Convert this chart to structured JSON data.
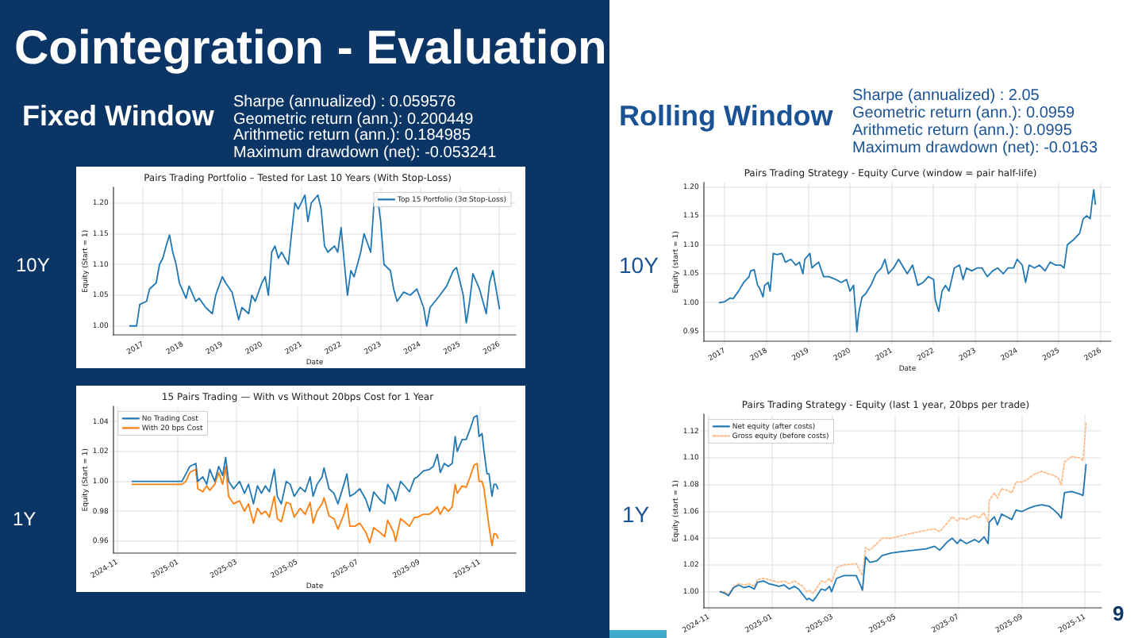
{
  "chart_data": [
    {
      "type": "other",
      "title": "Cointegration - Evaluation",
      "annotations": [
        "Fixed Window",
        "Sharpe (annualized) : 0.059576",
        "Geometric return (ann.): 0.200449",
        "Arithmetic return (ann.): 0.184985",
        "Maximum drawdown (net): -0.053241",
        "Rolling Window",
        "Sharpe (annualized) : 2.05",
        "Geometric return (ann.): 0.0959",
        "Arithmetic return (ann.): 0.0995",
        "Maximum drawdown (net): -0.0163",
        "10Y",
        "1Y",
        "10Y",
        "1Y",
        "9"
      ]
    },
    {
      "type": "line",
      "title": "Pairs Trading Portfolio – Tested for Last 10 Years (With Stop-Loss)",
      "xlabel": "Date",
      "ylabel": "Equity (Start = 1)",
      "grid": true,
      "legend": "top right",
      "xlim": [
        "2016-04",
        "2026-06"
      ],
      "xticks": [
        {
          "value": "2017",
          "label": "2017"
        },
        {
          "value": "2018",
          "label": "2018"
        },
        {
          "value": "2019",
          "label": "2019"
        },
        {
          "value": "2020",
          "label": "2020"
        },
        {
          "value": "2021",
          "label": "2021"
        },
        {
          "value": "2022",
          "label": "2022"
        },
        {
          "value": "2023",
          "label": "2023"
        },
        {
          "value": "2024",
          "label": "2024"
        },
        {
          "value": "2025",
          "label": "2025"
        },
        {
          "value": "2026",
          "label": "2026"
        }
      ],
      "ylim": [
        0.985,
        1.225
      ],
      "yticks": [
        {
          "value": 1,
          "label": "1.00"
        },
        1.05,
        {
          "value": 1.1,
          "label": "1.10"
        },
        1.15,
        {
          "value": 1.2,
          "label": "1.20"
        }
      ],
      "x": [
        "2016-09",
        "2016-11",
        "2016-12",
        "2017-02",
        "2017-03",
        "2017-05",
        "2017-06",
        "2017-07",
        "2017-08",
        "2017-09",
        "2017-10",
        "2017-11",
        "2017-12",
        "2018-02",
        "2018-03",
        "2018-05",
        "2018-06",
        "2018-08",
        "2018-10",
        "2018-11",
        "2019-01",
        "2019-02",
        "2019-04",
        "2019-06",
        "2019-07",
        "2019-09",
        "2019-10",
        "2019-11",
        "2020-01",
        "2020-02",
        "2020-03",
        "2020-04",
        "2020-05",
        "2020-06",
        "2020-07",
        "2020-09",
        "2020-10",
        "2020-11",
        "2020-12",
        "2021-02",
        "2021-03",
        "2021-04",
        "2021-06",
        "2021-07",
        "2021-08",
        "2021-09",
        "2021-11",
        "2021-12",
        "2022-01",
        "2022-02",
        "2022-03",
        "2022-04",
        "2022-05",
        "2022-07",
        "2022-08",
        "2022-10",
        "2022-11",
        "2022-12",
        "2023-01",
        "2023-02",
        "2023-04",
        "2023-05",
        "2023-06",
        "2023-08",
        "2023-10",
        "2023-12",
        "2024-02",
        "2024-03",
        "2024-04",
        "2024-07",
        "2024-09",
        "2024-11",
        "2024-12",
        "2025-02",
        "2025-03",
        "2025-04",
        "2025-05",
        "2025-07",
        "2025-09",
        "2025-10",
        "2025-11",
        "2025-12",
        "2026-01"
      ],
      "series": [
        {
          "name": "Top 15 Portfolio (3σ Stop-Loss)",
          "color": "#1f77b4",
          "values": [
            1.0,
            1.0,
            1.035,
            1.04,
            1.06,
            1.07,
            1.1,
            1.11,
            1.13,
            1.148,
            1.12,
            1.1,
            1.07,
            1.045,
            1.065,
            1.04,
            1.045,
            1.03,
            1.02,
            1.05,
            1.08,
            1.07,
            1.055,
            1.01,
            1.03,
            1.02,
            1.05,
            1.04,
            1.07,
            1.08,
            1.05,
            1.12,
            1.13,
            1.11,
            1.12,
            1.1,
            1.15,
            1.2,
            1.19,
            1.213,
            1.17,
            1.2,
            1.213,
            1.19,
            1.13,
            1.12,
            1.13,
            1.12,
            1.16,
            1.1,
            1.05,
            1.09,
            1.08,
            1.12,
            1.15,
            1.12,
            1.2,
            1.213,
            1.17,
            1.1,
            1.09,
            1.06,
            1.04,
            1.055,
            1.05,
            1.06,
            1.03,
            1.0,
            1.03,
            1.05,
            1.065,
            1.09,
            1.095,
            1.05,
            1.005,
            1.04,
            1.085,
            1.06,
            1.02,
            1.07,
            1.09,
            1.06,
            1.028
          ]
        }
      ]
    },
    {
      "type": "line",
      "title": "15 Pairs Trading — With vs Without 20bps Cost for 1 Year",
      "xlabel": "Date",
      "ylabel": "Equity (Start = 1)",
      "grid": true,
      "legend": "top left",
      "xlim": [
        "2024-10-28",
        "2025-12-07"
      ],
      "xticks": [
        {
          "value": "2024-11",
          "label": "2024-11"
        },
        {
          "value": "2025-01",
          "label": "2025-01"
        },
        {
          "value": "2025-03",
          "label": "2025-03"
        },
        {
          "value": "2025-05",
          "label": "2025-05"
        },
        {
          "value": "2025-07",
          "label": "2025-07"
        },
        {
          "value": "2025-09",
          "label": "2025-09"
        },
        {
          "value": "2025-11",
          "label": "2025-11"
        }
      ],
      "ylim": [
        0.952,
        1.05
      ],
      "yticks": [
        0.96,
        0.98,
        {
          "value": 1,
          "label": "1.00"
        },
        1.02,
        1.04
      ],
      "x": [
        "2024-11-16",
        "2025-01-05",
        "2025-01-09",
        "2025-01-13",
        "2025-01-19",
        "2025-01-21",
        "2025-01-26",
        "2025-01-30",
        "2025-02-02",
        "2025-02-07",
        "2025-02-11",
        "2025-02-15",
        "2025-02-18",
        "2025-02-21",
        "2025-02-26",
        "2025-03-04",
        "2025-03-09",
        "2025-03-13",
        "2025-03-18",
        "2025-03-22",
        "2025-03-26",
        "2025-03-30",
        "2025-04-03",
        "2025-04-08",
        "2025-04-11",
        "2025-04-15",
        "2025-04-20",
        "2025-04-24",
        "2025-04-28",
        "2025-05-04",
        "2025-05-09",
        "2025-05-14",
        "2025-05-17",
        "2025-05-21",
        "2025-05-26",
        "2025-05-28",
        "2025-06-02",
        "2025-06-07",
        "2025-06-11",
        "2025-06-17",
        "2025-06-20",
        "2025-06-23",
        "2025-06-28",
        "2025-07-03",
        "2025-07-09",
        "2025-07-13",
        "2025-07-17",
        "2025-07-23",
        "2025-07-28",
        "2025-07-31",
        "2025-08-06",
        "2025-08-08",
        "2025-08-13",
        "2025-08-17",
        "2025-08-22",
        "2025-08-27",
        "2025-08-30",
        "2025-09-05",
        "2025-09-11",
        "2025-09-15",
        "2025-09-19",
        "2025-09-22",
        "2025-09-26",
        "2025-09-30",
        "2025-10-04",
        "2025-10-07",
        "2025-10-09",
        "2025-10-14",
        "2025-10-18",
        "2025-10-22",
        "2025-10-26",
        "2025-10-29",
        "2025-10-31",
        "2025-11-03",
        "2025-11-05",
        "2025-11-08",
        "2025-11-10",
        "2025-11-13",
        "2025-11-15",
        "2025-11-17",
        "2025-11-19"
      ],
      "series": [
        {
          "name": "No Trading Cost",
          "color": "#1f77b4",
          "values": [
            1.0,
            1.0,
            1.005,
            1.01,
            1.012,
            1.0,
            1.003,
            0.998,
            1.008,
            1.0,
            1.01,
            1.004,
            1.016,
            1.0,
            0.995,
            1.0,
            0.992,
            0.998,
            0.985,
            0.997,
            0.992,
            0.997,
            0.993,
            1.008,
            0.99,
            0.985,
            1.0,
            0.998,
            0.99,
            0.996,
            0.993,
            1.003,
            0.99,
            0.998,
            1.003,
            1.009,
            0.995,
            0.992,
            0.985,
            0.998,
            1.005,
            0.99,
            0.992,
            0.995,
            0.988,
            0.98,
            0.993,
            0.988,
            0.985,
            0.998,
            0.992,
            0.987,
            1.0,
            0.997,
            0.993,
            1.002,
            1.003,
            1.007,
            1.008,
            1.01,
            1.018,
            1.006,
            1.012,
            1.01,
            1.012,
            1.03,
            1.02,
            1.028,
            1.028,
            1.035,
            1.043,
            1.044,
            1.03,
            1.032,
            1.02,
            1.005,
            1.005,
            0.99,
            0.998,
            0.998,
            0.995
          ]
        },
        {
          "name": "With 20 bps Cost",
          "color": "#ff7f0e",
          "values": [
            0.998,
            0.998,
            1.0,
            1.006,
            1.008,
            0.995,
            0.993,
            0.997,
            0.994,
            0.998,
            1.006,
            0.998,
            1.01,
            0.99,
            0.985,
            0.987,
            0.98,
            0.985,
            0.972,
            0.982,
            0.978,
            0.98,
            0.976,
            0.99,
            0.975,
            0.973,
            0.986,
            0.985,
            0.976,
            0.982,
            0.978,
            0.986,
            0.972,
            0.98,
            0.985,
            0.989,
            0.977,
            0.975,
            0.968,
            0.978,
            0.985,
            0.97,
            0.97,
            0.972,
            0.966,
            0.959,
            0.969,
            0.966,
            0.963,
            0.974,
            0.966,
            0.96,
            0.975,
            0.973,
            0.97,
            0.976,
            0.976,
            0.978,
            0.978,
            0.98,
            0.983,
            0.978,
            0.983,
            0.98,
            0.983,
            0.998,
            0.992,
            0.997,
            0.996,
            1.003,
            1.011,
            1.012,
            1.0,
            1.0,
            0.995,
            0.98,
            0.97,
            0.957,
            0.965,
            0.965,
            0.962
          ]
        }
      ]
    },
    {
      "type": "line",
      "title": "Pairs Trading Strategy - Equity Curve (window = pair half-life)",
      "xlabel": "Date",
      "ylabel": "Equity (start = 1)",
      "grid": true,
      "xlim": [
        "2016-07",
        "2026-04"
      ],
      "xticks": [
        {
          "value": "2017",
          "label": "2017"
        },
        {
          "value": "2018",
          "label": "2018"
        },
        {
          "value": "2019",
          "label": "2019"
        },
        {
          "value": "2020",
          "label": "2020"
        },
        {
          "value": "2021",
          "label": "2021"
        },
        {
          "value": "2022",
          "label": "2022"
        },
        {
          "value": "2023",
          "label": "2023"
        },
        {
          "value": "2024",
          "label": "2024"
        },
        {
          "value": "2025",
          "label": "2025"
        },
        {
          "value": "2026",
          "label": "2026"
        }
      ],
      "ylim": [
        0.933,
        1.207
      ],
      "yticks": [
        0.95,
        {
          "value": 1,
          "label": "1.00"
        },
        1.05,
        {
          "value": 1.1,
          "label": "1.10"
        },
        1.15,
        {
          "value": 1.2,
          "label": "1.20"
        }
      ],
      "x": [
        "2016-11-15",
        "2017-01-01",
        "2017-02-15",
        "2017-03-15",
        "2017-05-01",
        "2017-06-15",
        "2017-08-01",
        "2017-08-15",
        "2017-09-15",
        "2017-10-15",
        "2017-11-01",
        "2017-12-01",
        "2017-12-15",
        "2018-01-15",
        "2018-02-01",
        "2018-03-01",
        "2018-04-01",
        "2018-05-15",
        "2018-06-15",
        "2018-08-01",
        "2018-09-15",
        "2018-10-15",
        "2018-11-15",
        "2018-12-01",
        "2019-01-15",
        "2019-02-01",
        "2019-03-01",
        "2019-04-01",
        "2019-05-15",
        "2019-07-01",
        "2019-09-01",
        "2019-10-15",
        "2019-12-01",
        "2020-01-01",
        "2020-02-01",
        "2020-03-01",
        "2020-03-15",
        "2020-04-15",
        "2020-05-15",
        "2020-07-01",
        "2020-08-15",
        "2020-10-01",
        "2020-11-01",
        "2020-12-01",
        "2021-01-15",
        "2021-03-01",
        "2021-04-15",
        "2021-05-15",
        "2021-07-01",
        "2021-08-15",
        "2021-10-01",
        "2021-11-15",
        "2022-01-01",
        "2022-01-15",
        "2022-02-15",
        "2022-03-15",
        "2022-04-15",
        "2022-05-15",
        "2022-07-01",
        "2022-08-15",
        "2022-09-15",
        "2022-10-15",
        "2022-12-01",
        "2023-01-15",
        "2023-03-01",
        "2023-04-15",
        "2023-06-01",
        "2023-07-15",
        "2023-09-01",
        "2023-10-15",
        "2023-12-01",
        "2024-01-01",
        "2024-02-15",
        "2024-03-15",
        "2024-04-15",
        "2024-06-01",
        "2024-07-15",
        "2024-09-01",
        "2024-10-15",
        "2024-12-01",
        "2025-01-15",
        "2025-02-15",
        "2025-03-15",
        "2025-05-15",
        "2025-07-01",
        "2025-08-01",
        "2025-09-01",
        "2025-10-01",
        "2025-10-15",
        "2025-11-01",
        "2025-11-15"
      ],
      "series": [
        {
          "color": "#1f77b4",
          "values": [
            1.0,
            1.002,
            1.008,
            1.007,
            1.02,
            1.035,
            1.045,
            1.055,
            1.057,
            1.03,
            1.025,
            1.01,
            1.03,
            1.035,
            1.02,
            1.085,
            1.083,
            1.085,
            1.07,
            1.075,
            1.065,
            1.07,
            1.05,
            1.075,
            1.085,
            1.06,
            1.065,
            1.07,
            1.045,
            1.045,
            1.04,
            1.035,
            1.04,
            1.02,
            1.03,
            0.95,
            0.98,
            1.01,
            1.015,
            1.03,
            1.05,
            1.06,
            1.075,
            1.05,
            1.06,
            1.075,
            1.06,
            1.05,
            1.065,
            1.03,
            1.035,
            1.045,
            1.04,
            1.005,
            0.985,
            1.02,
            1.03,
            1.02,
            1.06,
            1.065,
            1.04,
            1.06,
            1.055,
            1.06,
            1.06,
            1.045,
            1.055,
            1.06,
            1.05,
            1.06,
            1.06,
            1.075,
            1.065,
            1.035,
            1.065,
            1.06,
            1.065,
            1.055,
            1.07,
            1.065,
            1.065,
            1.06,
            1.1,
            1.11,
            1.12,
            1.145,
            1.15,
            1.145,
            1.17,
            1.195,
            1.17
          ]
        }
      ]
    },
    {
      "type": "line",
      "title": "Pairs Trading Strategy - Equity (last 1 year, 20bps per trade)",
      "ylabel": "Equity (start = 1)",
      "grid": true,
      "legend": "top left",
      "xlim": [
        "2024-10-27",
        "2025-11-17"
      ],
      "xticks": [
        {
          "value": "2024-11",
          "label": "2024-11"
        },
        {
          "value": "2025-01",
          "label": "2025-01"
        },
        {
          "value": "2025-03",
          "label": "2025-03"
        },
        {
          "value": "2025-05",
          "label": "2025-05"
        },
        {
          "value": "2025-07",
          "label": "2025-07"
        },
        {
          "value": "2025-09",
          "label": "2025-09"
        },
        {
          "value": "2025-11",
          "label": "2025-11"
        }
      ],
      "ylim": [
        0.988,
        1.1325
      ],
      "yticks": [
        {
          "value": 1,
          "label": "1.00"
        },
        1.02,
        1.04,
        1.06,
        1.08,
        {
          "value": 1.1,
          "label": "1.10"
        },
        1.12
      ],
      "x": [
        "2024-11-12",
        "2024-11-16",
        "2024-11-20",
        "2024-11-25",
        "2024-11-30",
        "2024-12-05",
        "2024-12-10",
        "2024-12-15",
        "2024-12-18",
        "2024-12-24",
        "2024-12-29",
        "2025-01-03",
        "2025-01-08",
        "2025-01-13",
        "2025-01-18",
        "2025-01-23",
        "2025-01-27",
        "2025-01-31",
        "2025-02-04",
        "2025-02-06",
        "2025-02-10",
        "2025-02-13",
        "2025-02-18",
        "2025-02-22",
        "2025-02-26",
        "2025-02-28",
        "2025-03-05",
        "2025-03-12",
        "2025-03-24",
        "2025-03-28",
        "2025-03-30",
        "2025-04-02",
        "2025-04-06",
        "2025-04-13",
        "2025-04-18",
        "2025-04-27",
        "2025-05-07",
        "2025-05-19",
        "2025-05-31",
        "2025-06-08",
        "2025-06-13",
        "2025-06-20",
        "2025-06-25",
        "2025-06-30",
        "2025-07-03",
        "2025-07-09",
        "2025-07-17",
        "2025-07-21",
        "2025-07-26",
        "2025-07-30",
        "2025-07-31",
        "2025-08-05",
        "2025-08-08",
        "2025-08-12",
        "2025-08-17",
        "2025-08-22",
        "2025-08-26",
        "2025-09-01",
        "2025-09-06",
        "2025-09-13",
        "2025-09-20",
        "2025-09-27",
        "2025-10-02",
        "2025-10-06",
        "2025-10-09",
        "2025-10-12",
        "2025-10-19",
        "2025-10-27",
        "2025-10-30",
        "2025-11-02"
      ],
      "series": [
        {
          "name": "Net equity (after costs)",
          "color": "#1f77b4",
          "line_style": "solid",
          "values": [
            1.0,
            0.999,
            0.997,
            1.003,
            1.005,
            1.003,
            1.004,
            1.002,
            1.007,
            1.008,
            1.006,
            1.005,
            1.004,
            1.005,
            1.002,
            1.004,
            1.002,
            0.998,
            0.994,
            0.995,
            0.993,
            0.996,
            1.002,
            1.001,
            1.004,
            1.0,
            1.01,
            1.012,
            1.012,
            1.005,
            1.001,
            1.026,
            1.022,
            1.023,
            1.027,
            1.029,
            1.03,
            1.031,
            1.032,
            1.034,
            1.031,
            1.037,
            1.04,
            1.036,
            1.039,
            1.036,
            1.039,
            1.037,
            1.041,
            1.036,
            1.052,
            1.056,
            1.05,
            1.058,
            1.056,
            1.054,
            1.061,
            1.06,
            1.062,
            1.064,
            1.065,
            1.064,
            1.061,
            1.058,
            1.055,
            1.074,
            1.075,
            1.073,
            1.072,
            1.095
          ]
        },
        {
          "name": "Gross equity (before costs)",
          "color": "#ffbb88",
          "line_style": "dotted",
          "values": [
            1.0,
            1.0,
            0.998,
            1.004,
            1.006,
            1.005,
            1.006,
            1.004,
            1.009,
            1.01,
            1.009,
            1.008,
            1.007,
            1.008,
            1.006,
            1.008,
            1.006,
            1.004,
            1.0,
            1.001,
            0.999,
            1.002,
            1.008,
            1.007,
            1.01,
            1.007,
            1.018,
            1.02,
            1.021,
            1.015,
            1.012,
            1.033,
            1.031,
            1.036,
            1.04,
            1.04,
            1.042,
            1.044,
            1.046,
            1.047,
            1.045,
            1.051,
            1.056,
            1.053,
            1.055,
            1.054,
            1.057,
            1.055,
            1.059,
            1.052,
            1.068,
            1.074,
            1.07,
            1.077,
            1.076,
            1.074,
            1.082,
            1.082,
            1.084,
            1.088,
            1.09,
            1.088,
            1.087,
            1.085,
            1.08,
            1.097,
            1.101,
            1.1,
            1.098,
            1.126
          ]
        }
      ]
    }
  ]
}
